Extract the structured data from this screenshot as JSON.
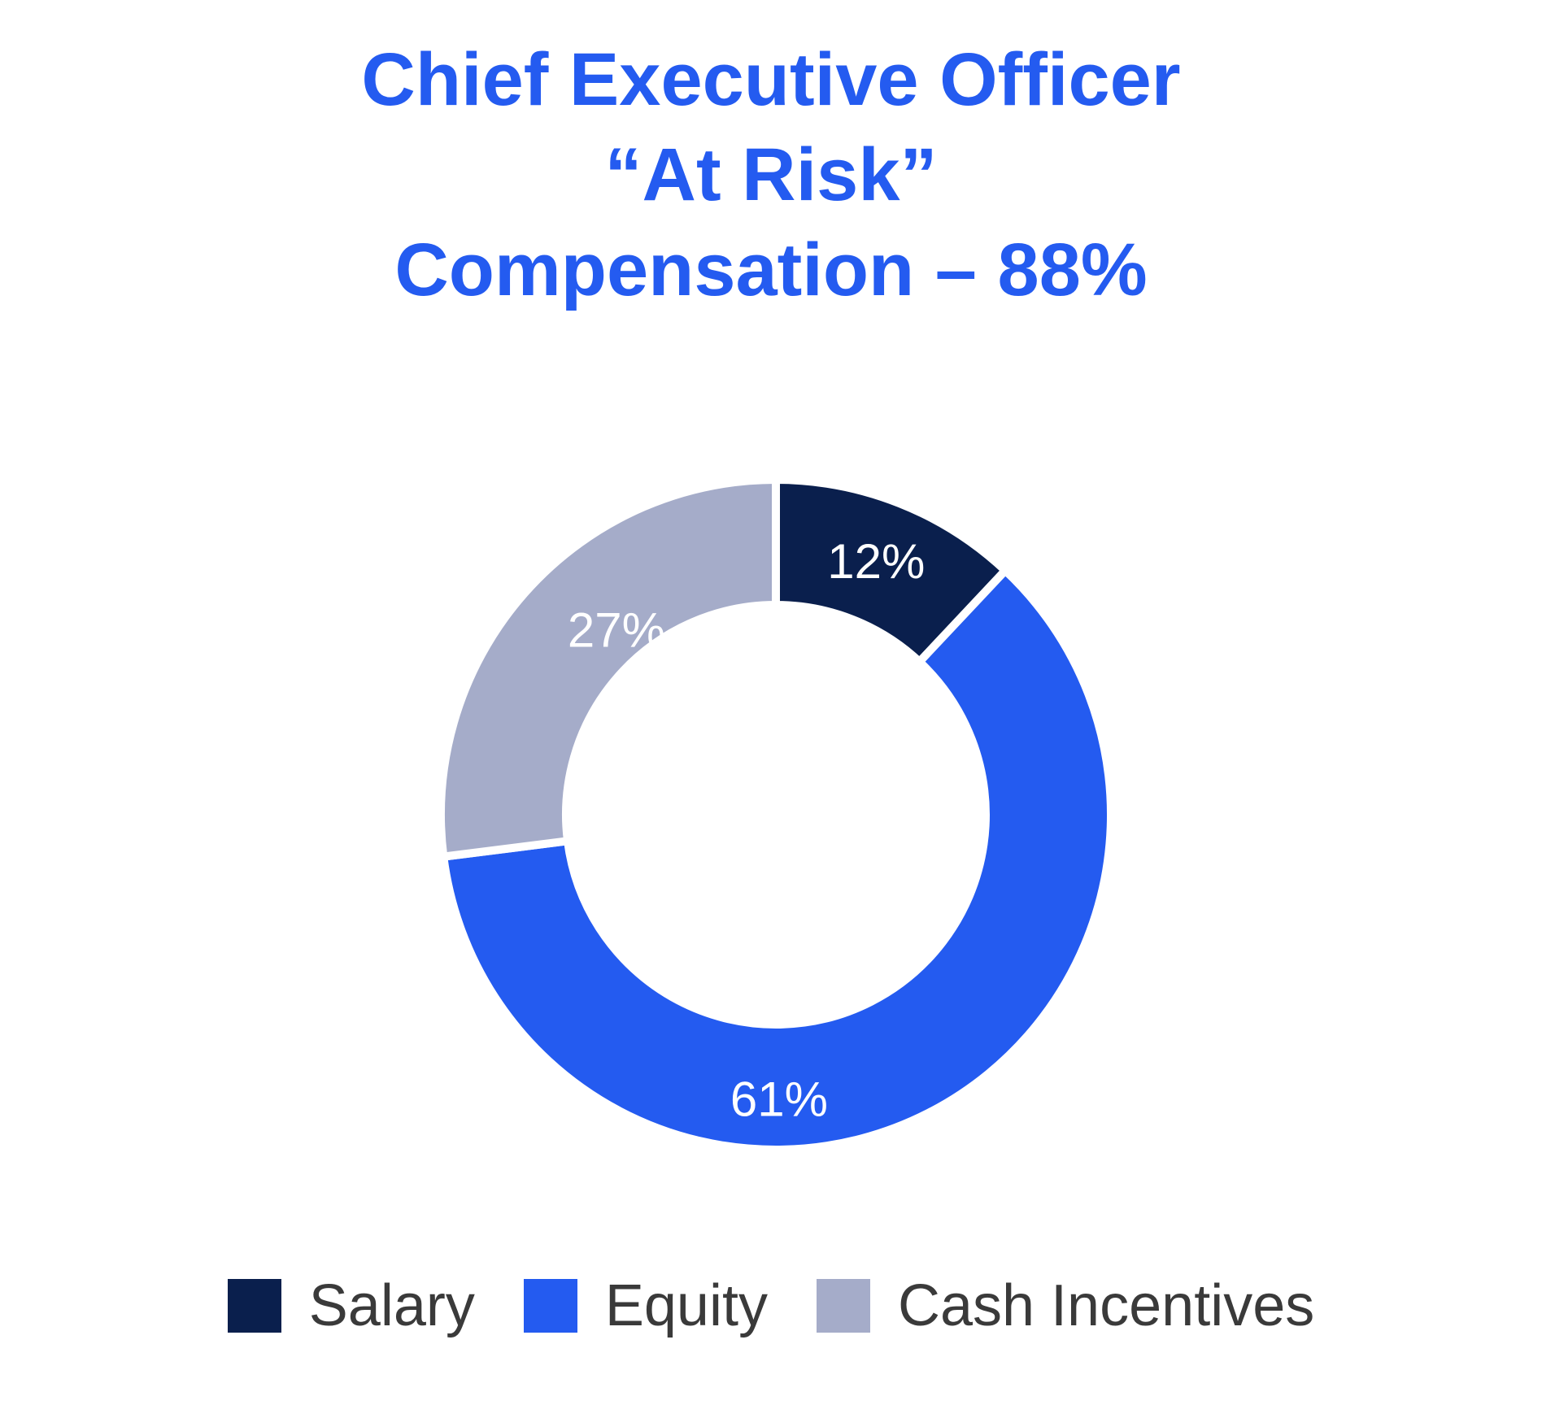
{
  "chart_data": {
    "type": "pie",
    "donut": true,
    "title": [
      "Chief Executive Officer",
      "“At Risk”",
      "Compensation – 88%"
    ],
    "categories": [
      "Salary",
      "Equity",
      "Cash Incentives"
    ],
    "values": [
      12,
      61,
      27
    ],
    "labels": [
      "12%",
      "61%",
      "27%"
    ],
    "colors": [
      "#0a1f4d",
      "#245bf0",
      "#a5acc9"
    ],
    "title_color": "#245bf0",
    "legend_position": "bottom",
    "start_angle": "top",
    "direction": "clockwise"
  }
}
